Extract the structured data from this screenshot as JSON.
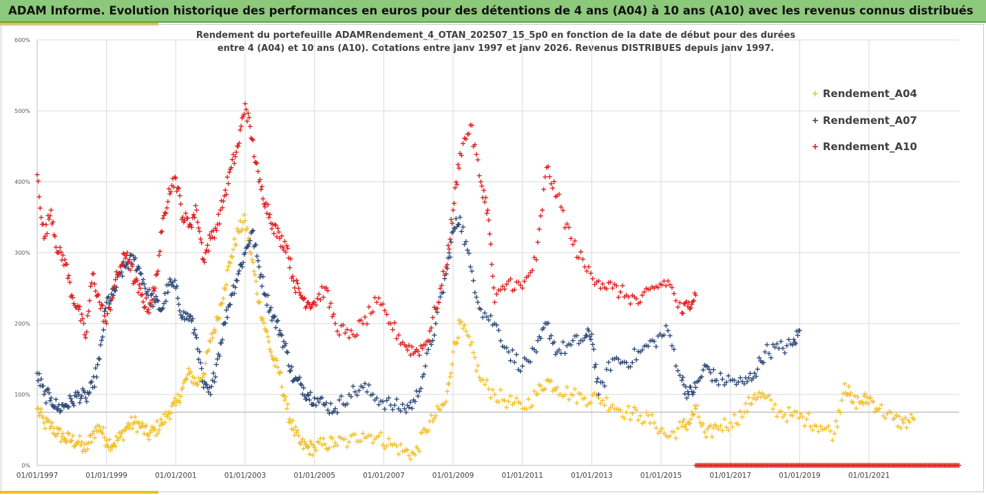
{
  "header": {
    "title": "ADAM Informe. Evolution historique des performances en euros pour des détentions de 4 ans (A04) à 10 ans (A10) avec les revenus connus distribués"
  },
  "chart_data": {
    "type": "scatter",
    "title_line1": "Rendement du portefeuille ADAMRendement_4_OTAN_202507_15_5p0  en fonction de la date de début pour des durées",
    "title_line2": "entre 4 (A04) et 10 ans (A10). Cotations entre janv 1997 et janv 2026. Revenus DISTRIBUES depuis janv 1997.",
    "xlabel": "",
    "ylabel": "",
    "x_range": [
      1997.0,
      2023.6
    ],
    "ylim": [
      0,
      600
    ],
    "y_ticks": [
      0,
      100,
      200,
      300,
      400,
      500,
      600
    ],
    "y_tick_labels": [
      "0%",
      "100%",
      "200%",
      "300%",
      "400%",
      "500%",
      "600%"
    ],
    "x_ticks": [
      1997,
      1999,
      2001,
      2003,
      2005,
      2007,
      2009,
      2011,
      2013,
      2015,
      2017,
      2019,
      2021
    ],
    "x_tick_labels": [
      "01/01/1997",
      "01/01/1999",
      "01/01/2001",
      "01/01/2003",
      "01/01/2005",
      "01/01/2007",
      "01/01/2009",
      "01/01/2011",
      "01/01/2013",
      "01/01/2015",
      "01/01/2017",
      "01/01/2019",
      "01/01/2021"
    ],
    "reference_line": 75,
    "grid": true,
    "legend_position": "top-right",
    "marker": "+",
    "series": [
      {
        "name": "Rendement_A04",
        "color": "#f2c12e",
        "x": [
          1997.0,
          1997.2,
          1997.4,
          1997.6,
          1997.8,
          1998.0,
          1998.2,
          1998.4,
          1998.6,
          1998.8,
          1999.0,
          1999.2,
          1999.4,
          1999.6,
          1999.8,
          2000.0,
          2000.2,
          2000.4,
          2000.6,
          2000.8,
          2001.0,
          2001.2,
          2001.4,
          2001.6,
          2001.8,
          2002.0,
          2002.2,
          2002.4,
          2002.6,
          2002.8,
          2003.0,
          2003.2,
          2003.4,
          2003.6,
          2003.8,
          2004.0,
          2004.2,
          2004.4,
          2004.6,
          2004.8,
          2005.0,
          2005.3,
          2005.6,
          2006.0,
          2006.4,
          2006.8,
          2007.2,
          2007.6,
          2007.9,
          2008.2,
          2008.5,
          2008.8,
          2009.0,
          2009.2,
          2009.5,
          2009.8,
          2010.2,
          2010.6,
          2011.0,
          2011.4,
          2011.7,
          2012.0,
          2012.4,
          2012.8,
          2013.2,
          2013.6,
          2014.0,
          2014.4,
          2014.8,
          2015.2,
          2015.6,
          2015.8,
          2016.0,
          2016.3,
          2016.6,
          2017.0,
          2017.4,
          2017.7,
          2018.0,
          2018.4,
          2018.8,
          2019.2,
          2019.6,
          2020.0,
          2020.3,
          2020.5,
          2020.8,
          2021.0,
          2021.3,
          2021.7,
          2022.0,
          2022.3
        ],
        "values": [
          80,
          60,
          55,
          45,
          38,
          35,
          33,
          20,
          45,
          55,
          35,
          30,
          40,
          55,
          60,
          55,
          42,
          50,
          60,
          75,
          85,
          110,
          130,
          115,
          130,
          175,
          205,
          250,
          295,
          330,
          345,
          290,
          230,
          190,
          150,
          130,
          80,
          50,
          30,
          25,
          25,
          30,
          32,
          33,
          45,
          40,
          30,
          20,
          15,
          50,
          70,
          90,
          160,
          200,
          170,
          120,
          100,
          90,
          80,
          100,
          120,
          110,
          100,
          95,
          95,
          85,
          75,
          70,
          60,
          40,
          55,
          60,
          80,
          40,
          55,
          60,
          75,
          100,
          95,
          75,
          70,
          65,
          55,
          45,
          115,
          90,
          90,
          95,
          80,
          65,
          60,
          65
        ]
      },
      {
        "name": "Rendement_A07",
        "color": "#2f4a78",
        "x": [
          1997.0,
          1997.2,
          1997.4,
          1997.6,
          1997.8,
          1998.0,
          1998.2,
          1998.4,
          1998.6,
          1998.8,
          1999.0,
          1999.2,
          1999.4,
          1999.6,
          1999.8,
          2000.0,
          2000.2,
          2000.4,
          2000.6,
          2000.8,
          2001.0,
          2001.2,
          2001.4,
          2001.6,
          2001.8,
          2002.0,
          2002.2,
          2002.4,
          2002.6,
          2002.8,
          2003.0,
          2003.2,
          2003.4,
          2003.6,
          2003.8,
          2004.0,
          2004.2,
          2004.4,
          2004.6,
          2004.8,
          2005.0,
          2005.3,
          2005.6,
          2006.0,
          2006.4,
          2006.8,
          2007.2,
          2007.6,
          2007.9,
          2008.2,
          2008.5,
          2008.8,
          2009.0,
          2009.2,
          2009.5,
          2009.8,
          2010.2,
          2010.6,
          2011.0,
          2011.4,
          2011.7,
          2012.0,
          2012.4,
          2012.8,
          2013.0,
          2013.2,
          2013.6,
          2014.0,
          2014.4,
          2014.8,
          2015.2,
          2015.6,
          2015.8,
          2016.0,
          2016.3,
          2016.6,
          2017.0,
          2017.4,
          2017.7,
          2018.0,
          2018.4,
          2018.8,
          2019.0
        ],
        "values": [
          130,
          100,
          95,
          80,
          85,
          90,
          100,
          95,
          110,
          150,
          230,
          240,
          270,
          285,
          290,
          270,
          240,
          230,
          220,
          255,
          250,
          210,
          210,
          180,
          110,
          100,
          150,
          200,
          240,
          270,
          300,
          330,
          280,
          240,
          210,
          190,
          160,
          120,
          115,
          100,
          95,
          85,
          80,
          100,
          110,
          95,
          85,
          80,
          90,
          140,
          200,
          270,
          330,
          350,
          280,
          220,
          200,
          160,
          140,
          160,
          200,
          160,
          170,
          180,
          185,
          100,
          150,
          145,
          160,
          175,
          190,
          120,
          100,
          110,
          140,
          120,
          120,
          115,
          130,
          160,
          165,
          170,
          190
        ]
      },
      {
        "name": "Rendement_A10",
        "color": "#e02020",
        "x": [
          1997.0,
          1997.2,
          1997.4,
          1997.6,
          1997.8,
          1998.0,
          1998.2,
          1998.4,
          1998.6,
          1998.8,
          1999.0,
          1999.2,
          1999.4,
          1999.6,
          1999.8,
          2000.0,
          2000.2,
          2000.4,
          2000.6,
          2000.8,
          2001.0,
          2001.2,
          2001.4,
          2001.6,
          2001.8,
          2002.0,
          2002.2,
          2002.4,
          2002.6,
          2002.8,
          2003.0,
          2003.2,
          2003.4,
          2003.6,
          2003.8,
          2004.0,
          2004.2,
          2004.4,
          2004.6,
          2004.8,
          2005.0,
          2005.3,
          2005.6,
          2006.0,
          2006.4,
          2006.8,
          2007.2,
          2007.6,
          2007.9,
          2008.2,
          2008.5,
          2008.8,
          2009.0,
          2009.2,
          2009.5,
          2009.8,
          2010.0,
          2010.2,
          2010.6,
          2011.0,
          2011.4,
          2011.7,
          2012.0,
          2012.4,
          2012.8,
          2013.2,
          2013.6,
          2014.0,
          2014.4,
          2014.8,
          2015.2,
          2015.6,
          2015.8,
          2016.0
        ],
        "values": [
          410,
          320,
          360,
          300,
          290,
          240,
          220,
          180,
          270,
          230,
          200,
          250,
          280,
          300,
          260,
          240,
          220,
          250,
          330,
          390,
          405,
          350,
          340,
          360,
          290,
          320,
          340,
          380,
          420,
          450,
          510,
          460,
          400,
          370,
          340,
          320,
          310,
          260,
          240,
          230,
          230,
          250,
          200,
          180,
          200,
          230,
          200,
          170,
          160,
          170,
          220,
          280,
          360,
          440,
          480,
          400,
          360,
          230,
          260,
          250,
          290,
          420,
          380,
          320,
          280,
          260,
          250,
          240,
          230,
          250,
          260,
          215,
          230,
          240
        ]
      }
    ],
    "zero_band": {
      "name": "Rendement_A10",
      "x_range": [
        2016.0,
        2023.6
      ],
      "value": 0
    }
  }
}
